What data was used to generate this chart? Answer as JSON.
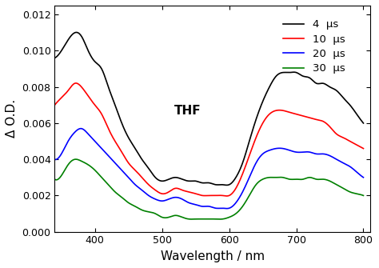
{
  "title": "",
  "xlabel": "Wavelength / nm",
  "ylabel": "Δ O.D.",
  "xlim": [
    340,
    810
  ],
  "ylim": [
    0.0,
    0.0125
  ],
  "yticks": [
    0.0,
    0.002,
    0.004,
    0.006,
    0.008,
    0.01,
    0.012
  ],
  "xticks": [
    400,
    500,
    600,
    700,
    800
  ],
  "legend_labels": [
    "4  μs",
    "10  μs",
    "20  μs",
    "30  μs"
  ],
  "legend_colors": [
    "black",
    "red",
    "blue",
    "green"
  ],
  "annotation": "THF",
  "curves": {
    "black": {
      "wavelengths": [
        340,
        350,
        360,
        370,
        380,
        390,
        400,
        410,
        420,
        430,
        440,
        450,
        460,
        470,
        480,
        490,
        500,
        510,
        520,
        530,
        540,
        550,
        560,
        570,
        580,
        590,
        600,
        610,
        620,
        630,
        640,
        650,
        660,
        670,
        680,
        690,
        700,
        710,
        720,
        730,
        740,
        750,
        760,
        770,
        780,
        790,
        800
      ],
      "values": [
        0.0096,
        0.01,
        0.0106,
        0.011,
        0.0108,
        0.01,
        0.0094,
        0.009,
        0.008,
        0.007,
        0.006,
        0.0052,
        0.0046,
        0.004,
        0.0035,
        0.003,
        0.0028,
        0.0029,
        0.003,
        0.0029,
        0.0028,
        0.0028,
        0.0027,
        0.0027,
        0.0026,
        0.0026,
        0.0026,
        0.003,
        0.0038,
        0.005,
        0.0062,
        0.0072,
        0.008,
        0.0086,
        0.0088,
        0.0088,
        0.0088,
        0.0086,
        0.0085,
        0.0082,
        0.0082,
        0.008,
        0.0078,
        0.0074,
        0.007,
        0.0065,
        0.006
      ]
    },
    "red": {
      "wavelengths": [
        340,
        350,
        360,
        370,
        380,
        390,
        400,
        410,
        420,
        430,
        440,
        450,
        460,
        470,
        480,
        490,
        500,
        510,
        520,
        530,
        540,
        550,
        560,
        570,
        580,
        590,
        600,
        610,
        620,
        630,
        640,
        650,
        660,
        670,
        680,
        690,
        700,
        710,
        720,
        730,
        740,
        750,
        760,
        770,
        780,
        790,
        800
      ],
      "values": [
        0.007,
        0.0074,
        0.0078,
        0.0082,
        0.008,
        0.0075,
        0.007,
        0.0065,
        0.0057,
        0.005,
        0.0044,
        0.0038,
        0.0034,
        0.003,
        0.0026,
        0.0023,
        0.0021,
        0.0022,
        0.0024,
        0.0023,
        0.0022,
        0.0021,
        0.002,
        0.002,
        0.002,
        0.002,
        0.002,
        0.0024,
        0.0032,
        0.0042,
        0.0052,
        0.006,
        0.0065,
        0.0067,
        0.0067,
        0.0066,
        0.0065,
        0.0064,
        0.0063,
        0.0062,
        0.0061,
        0.0058,
        0.0054,
        0.0052,
        0.005,
        0.0048,
        0.0046
      ]
    },
    "blue": {
      "wavelengths": [
        340,
        350,
        360,
        370,
        380,
        390,
        400,
        410,
        420,
        430,
        440,
        450,
        460,
        470,
        480,
        490,
        500,
        510,
        520,
        530,
        540,
        550,
        560,
        570,
        580,
        590,
        600,
        610,
        620,
        630,
        640,
        650,
        660,
        670,
        680,
        690,
        700,
        710,
        720,
        730,
        740,
        750,
        760,
        770,
        780,
        790,
        800
      ],
      "values": [
        0.004,
        0.0043,
        0.005,
        0.0055,
        0.0057,
        0.0054,
        0.005,
        0.0046,
        0.0042,
        0.0038,
        0.0034,
        0.003,
        0.0026,
        0.0023,
        0.002,
        0.0018,
        0.0017,
        0.0018,
        0.0019,
        0.0018,
        0.0016,
        0.0015,
        0.0014,
        0.0014,
        0.0013,
        0.0013,
        0.0013,
        0.0016,
        0.0022,
        0.003,
        0.0038,
        0.0043,
        0.0045,
        0.0046,
        0.0046,
        0.0045,
        0.0044,
        0.0044,
        0.0044,
        0.0043,
        0.0043,
        0.0042,
        0.004,
        0.0038,
        0.0036,
        0.0033,
        0.003
      ]
    },
    "green": {
      "wavelengths": [
        340,
        350,
        360,
        370,
        380,
        390,
        400,
        410,
        420,
        430,
        440,
        450,
        460,
        470,
        480,
        490,
        500,
        510,
        520,
        530,
        540,
        550,
        560,
        570,
        580,
        590,
        600,
        610,
        620,
        630,
        640,
        650,
        660,
        670,
        680,
        690,
        700,
        710,
        720,
        730,
        740,
        750,
        760,
        770,
        780,
        790,
        800
      ],
      "values": [
        0.0029,
        0.0031,
        0.0037,
        0.004,
        0.0039,
        0.0037,
        0.0034,
        0.003,
        0.0026,
        0.0022,
        0.0019,
        0.0016,
        0.0014,
        0.0012,
        0.0011,
        0.001,
        0.0008,
        0.0008,
        0.0009,
        0.0008,
        0.0007,
        0.0007,
        0.0007,
        0.0007,
        0.0007,
        0.0007,
        0.0008,
        0.001,
        0.0014,
        0.002,
        0.0026,
        0.0029,
        0.003,
        0.003,
        0.003,
        0.0029,
        0.0029,
        0.0029,
        0.003,
        0.0029,
        0.0029,
        0.0028,
        0.0026,
        0.0024,
        0.0022,
        0.0021,
        0.002
      ]
    }
  }
}
